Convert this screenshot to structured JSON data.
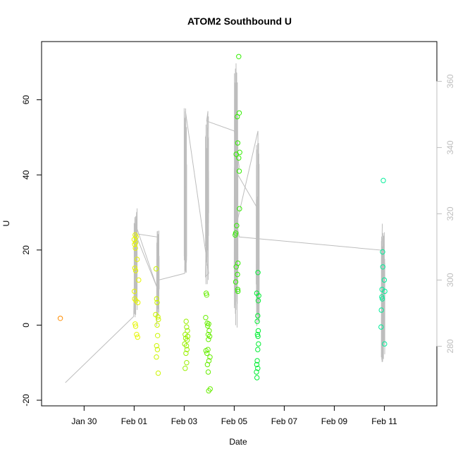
{
  "chart_data": {
    "type": "scatter",
    "title": "ATOM2 Southbound U",
    "xlabel": "Date",
    "ylabel": "U",
    "xlim": [
      -0.7,
      15.1
    ],
    "ylim": [
      -21.5,
      75.5
    ],
    "y2lim": [
      262,
      372
    ],
    "x_ticks": [
      {
        "value": 1,
        "label": "Jan 30"
      },
      {
        "value": 3,
        "label": "Feb 01"
      },
      {
        "value": 5,
        "label": "Feb 03"
      },
      {
        "value": 7,
        "label": "Feb 05"
      },
      {
        "value": 9,
        "label": "Feb 07"
      },
      {
        "value": 11,
        "label": "Feb 09"
      },
      {
        "value": 13,
        "label": "Feb 11"
      }
    ],
    "y_ticks": [
      -20,
      0,
      20,
      40,
      60
    ],
    "y2_ticks": [
      280,
      300,
      320,
      340,
      360
    ],
    "grid": false,
    "legend": "none",
    "line_color": "#bdbdbd",
    "points": [
      {
        "x": 0.05,
        "y": 1.8,
        "color": "#ff8c00"
      },
      {
        "x": 3.0,
        "y": 22.8,
        "color": "#e6f500"
      },
      {
        "x": 3.02,
        "y": 21.5,
        "color": "#e6f500"
      },
      {
        "x": 3.04,
        "y": 24.0,
        "color": "#e6f500"
      },
      {
        "x": 3.05,
        "y": 20.5,
        "color": "#e6f500"
      },
      {
        "x": 3.06,
        "y": 22.0,
        "color": "#e6f500"
      },
      {
        "x": 3.08,
        "y": 23.5,
        "color": "#e6f500"
      },
      {
        "x": 3.03,
        "y": 15.2,
        "color": "#e6f500"
      },
      {
        "x": 3.06,
        "y": 14.5,
        "color": "#e6f500"
      },
      {
        "x": 3.01,
        "y": 9.0,
        "color": "#e6f500"
      },
      {
        "x": 3.02,
        "y": 7.0,
        "color": "#e6f500"
      },
      {
        "x": 3.07,
        "y": 6.5,
        "color": "#e6f500"
      },
      {
        "x": 3.15,
        "y": 6.0,
        "color": "#e6f500"
      },
      {
        "x": 3.04,
        "y": 0.3,
        "color": "#e6f500"
      },
      {
        "x": 3.06,
        "y": -0.3,
        "color": "#e6f500"
      },
      {
        "x": 3.1,
        "y": -2.5,
        "color": "#e6f500"
      },
      {
        "x": 3.14,
        "y": -3.2,
        "color": "#e6f500"
      },
      {
        "x": 3.18,
        "y": 12.0,
        "color": "#e6f500"
      },
      {
        "x": 3.12,
        "y": 17.5,
        "color": "#e6f500"
      },
      {
        "x": 3.88,
        "y": 15.0,
        "color": "#ccf500"
      },
      {
        "x": 3.9,
        "y": 7.0,
        "color": "#ccf500"
      },
      {
        "x": 3.92,
        "y": 6.0,
        "color": "#ccf500"
      },
      {
        "x": 3.86,
        "y": 2.8,
        "color": "#ccf500"
      },
      {
        "x": 3.95,
        "y": 2.2,
        "color": "#ccf500"
      },
      {
        "x": 3.97,
        "y": 1.5,
        "color": "#ccf500"
      },
      {
        "x": 3.92,
        "y": 0.0,
        "color": "#ccf500"
      },
      {
        "x": 3.94,
        "y": -2.8,
        "color": "#ccf500"
      },
      {
        "x": 3.9,
        "y": -5.5,
        "color": "#ccf500"
      },
      {
        "x": 3.93,
        "y": -6.5,
        "color": "#ccf500"
      },
      {
        "x": 3.89,
        "y": -8.5,
        "color": "#ccf500"
      },
      {
        "x": 3.96,
        "y": -12.8,
        "color": "#ccf500"
      },
      {
        "x": 5.08,
        "y": 1.0,
        "color": "#99f000"
      },
      {
        "x": 5.1,
        "y": -0.5,
        "color": "#99f000"
      },
      {
        "x": 5.04,
        "y": -2.5,
        "color": "#99f000"
      },
      {
        "x": 5.06,
        "y": -3.5,
        "color": "#99f000"
      },
      {
        "x": 5.12,
        "y": -4.0,
        "color": "#99f000"
      },
      {
        "x": 5.02,
        "y": -5.0,
        "color": "#99f000"
      },
      {
        "x": 5.09,
        "y": -5.5,
        "color": "#99f000"
      },
      {
        "x": 5.14,
        "y": -3.0,
        "color": "#99f000"
      },
      {
        "x": 5.07,
        "y": -7.5,
        "color": "#99f000"
      },
      {
        "x": 5.11,
        "y": -6.5,
        "color": "#99f000"
      },
      {
        "x": 5.1,
        "y": -10.0,
        "color": "#99f000"
      },
      {
        "x": 5.04,
        "y": -11.5,
        "color": "#99f000"
      },
      {
        "x": 5.13,
        "y": -1.5,
        "color": "#99f000"
      },
      {
        "x": 5.88,
        "y": 8.5,
        "color": "#66ee00"
      },
      {
        "x": 5.9,
        "y": 8.0,
        "color": "#66ee00"
      },
      {
        "x": 5.86,
        "y": 2.0,
        "color": "#66ee00"
      },
      {
        "x": 5.92,
        "y": 0.5,
        "color": "#66ee00"
      },
      {
        "x": 5.94,
        "y": -0.2,
        "color": "#66ee00"
      },
      {
        "x": 5.98,
        "y": 0.3,
        "color": "#66ee00"
      },
      {
        "x": 6.0,
        "y": -1.5,
        "color": "#66ee00"
      },
      {
        "x": 5.96,
        "y": -2.5,
        "color": "#66ee00"
      },
      {
        "x": 6.02,
        "y": -3.0,
        "color": "#66ee00"
      },
      {
        "x": 5.97,
        "y": -3.8,
        "color": "#66ee00"
      },
      {
        "x": 5.87,
        "y": -6.8,
        "color": "#66ee00"
      },
      {
        "x": 5.91,
        "y": -7.5,
        "color": "#66ee00"
      },
      {
        "x": 5.95,
        "y": -6.5,
        "color": "#66ee00"
      },
      {
        "x": 6.03,
        "y": -8.5,
        "color": "#66ee00"
      },
      {
        "x": 5.99,
        "y": -9.5,
        "color": "#66ee00"
      },
      {
        "x": 5.93,
        "y": -10.5,
        "color": "#66ee00"
      },
      {
        "x": 5.96,
        "y": -12.5,
        "color": "#66ee00"
      },
      {
        "x": 5.98,
        "y": -17.5,
        "color": "#66ee00"
      },
      {
        "x": 6.04,
        "y": -17.0,
        "color": "#66ee00"
      },
      {
        "x": 7.18,
        "y": 71.5,
        "color": "#33ee00"
      },
      {
        "x": 7.2,
        "y": 56.5,
        "color": "#33ee00"
      },
      {
        "x": 7.12,
        "y": 55.5,
        "color": "#33ee00"
      },
      {
        "x": 7.14,
        "y": 48.5,
        "color": "#33ee00"
      },
      {
        "x": 7.22,
        "y": 46.0,
        "color": "#33ee00"
      },
      {
        "x": 7.08,
        "y": 45.5,
        "color": "#33ee00"
      },
      {
        "x": 7.18,
        "y": 44.5,
        "color": "#33ee00"
      },
      {
        "x": 7.2,
        "y": 41.0,
        "color": "#33ee00"
      },
      {
        "x": 7.21,
        "y": 31.0,
        "color": "#33ee00"
      },
      {
        "x": 7.1,
        "y": 26.5,
        "color": "#33ee00"
      },
      {
        "x": 7.06,
        "y": 24.5,
        "color": "#33ee00"
      },
      {
        "x": 7.04,
        "y": 24.0,
        "color": "#33ee00"
      },
      {
        "x": 7.15,
        "y": 16.5,
        "color": "#33ee00"
      },
      {
        "x": 7.08,
        "y": 15.5,
        "color": "#33ee00"
      },
      {
        "x": 7.13,
        "y": 13.5,
        "color": "#33ee00"
      },
      {
        "x": 7.06,
        "y": 11.5,
        "color": "#33ee00"
      },
      {
        "x": 7.14,
        "y": 9.5,
        "color": "#33ee00"
      },
      {
        "x": 7.15,
        "y": 9.0,
        "color": "#33ee00"
      },
      {
        "x": 7.95,
        "y": 14.0,
        "color": "#00ee33"
      },
      {
        "x": 7.9,
        "y": 8.5,
        "color": "#00ee33"
      },
      {
        "x": 7.98,
        "y": 7.8,
        "color": "#00ee33"
      },
      {
        "x": 7.96,
        "y": 6.5,
        "color": "#00ee33"
      },
      {
        "x": 7.94,
        "y": 2.5,
        "color": "#00ee33"
      },
      {
        "x": 7.92,
        "y": 1.0,
        "color": "#00ee33"
      },
      {
        "x": 7.96,
        "y": -1.5,
        "color": "#00ee33"
      },
      {
        "x": 7.93,
        "y": -2.5,
        "color": "#00ee33"
      },
      {
        "x": 7.95,
        "y": -3.0,
        "color": "#00ee33"
      },
      {
        "x": 7.97,
        "y": -5.0,
        "color": "#00ee33"
      },
      {
        "x": 7.94,
        "y": -6.5,
        "color": "#00ee33"
      },
      {
        "x": 7.92,
        "y": -9.5,
        "color": "#00ee33"
      },
      {
        "x": 7.9,
        "y": -10.5,
        "color": "#00ee33"
      },
      {
        "x": 7.94,
        "y": -11.5,
        "color": "#00ee33"
      },
      {
        "x": 7.89,
        "y": -12.5,
        "color": "#00ee33"
      },
      {
        "x": 7.91,
        "y": -14.0,
        "color": "#00ee33"
      },
      {
        "x": 12.96,
        "y": 38.5,
        "color": "#00ee99"
      },
      {
        "x": 12.93,
        "y": 19.5,
        "color": "#00ee99"
      },
      {
        "x": 12.94,
        "y": 15.5,
        "color": "#00ee99"
      },
      {
        "x": 13.0,
        "y": 12.0,
        "color": "#00ee99"
      },
      {
        "x": 12.91,
        "y": 9.5,
        "color": "#00ee99"
      },
      {
        "x": 13.02,
        "y": 9.0,
        "color": "#00ee99"
      },
      {
        "x": 12.9,
        "y": 7.5,
        "color": "#00ee99"
      },
      {
        "x": 12.92,
        "y": 7.0,
        "color": "#00ee99"
      },
      {
        "x": 12.88,
        "y": 4.0,
        "color": "#00ee99"
      },
      {
        "x": 12.87,
        "y": -0.5,
        "color": "#00ee99"
      },
      {
        "x": 13.01,
        "y": -5.0,
        "color": "#00ee99"
      }
    ],
    "bursts": [
      {
        "x0": 3.0,
        "x1": 3.12,
        "min": 287,
        "max": 322
      },
      {
        "x0": 3.9,
        "x1": 4.0,
        "min": 286,
        "max": 315
      },
      {
        "x0": 5.0,
        "x1": 5.1,
        "min": 300,
        "max": 352
      },
      {
        "x0": 5.85,
        "x1": 5.98,
        "min": 298,
        "max": 350
      },
      {
        "x0": 7.0,
        "x1": 7.15,
        "min": 284,
        "max": 367
      },
      {
        "x0": 7.88,
        "x1": 8.0,
        "min": 286,
        "max": 342
      },
      {
        "x0": 12.88,
        "x1": 13.02,
        "min": 275,
        "max": 315
      }
    ],
    "line_connectors": [
      [
        0.25,
        269
      ],
      [
        2.98,
        289
      ],
      [
        3.05,
        317
      ],
      [
        3.9,
        298
      ],
      [
        3.92,
        313
      ],
      [
        3.05,
        314
      ],
      [
        3.9,
        298
      ],
      [
        3.98,
        300
      ],
      [
        5.02,
        302
      ],
      [
        5.05,
        351
      ],
      [
        5.98,
        302
      ],
      [
        5.85,
        301
      ],
      [
        5.95,
        351
      ],
      [
        5.9,
        348
      ],
      [
        7.0,
        345
      ],
      [
        7.2,
        334
      ],
      [
        7.05,
        333
      ],
      [
        7.9,
        322
      ],
      [
        7.95,
        319
      ],
      [
        7.95,
        345
      ],
      [
        7.1,
        317
      ],
      [
        7.2,
        313
      ],
      [
        12.9,
        309
      ],
      [
        12.92,
        317
      ]
    ]
  }
}
